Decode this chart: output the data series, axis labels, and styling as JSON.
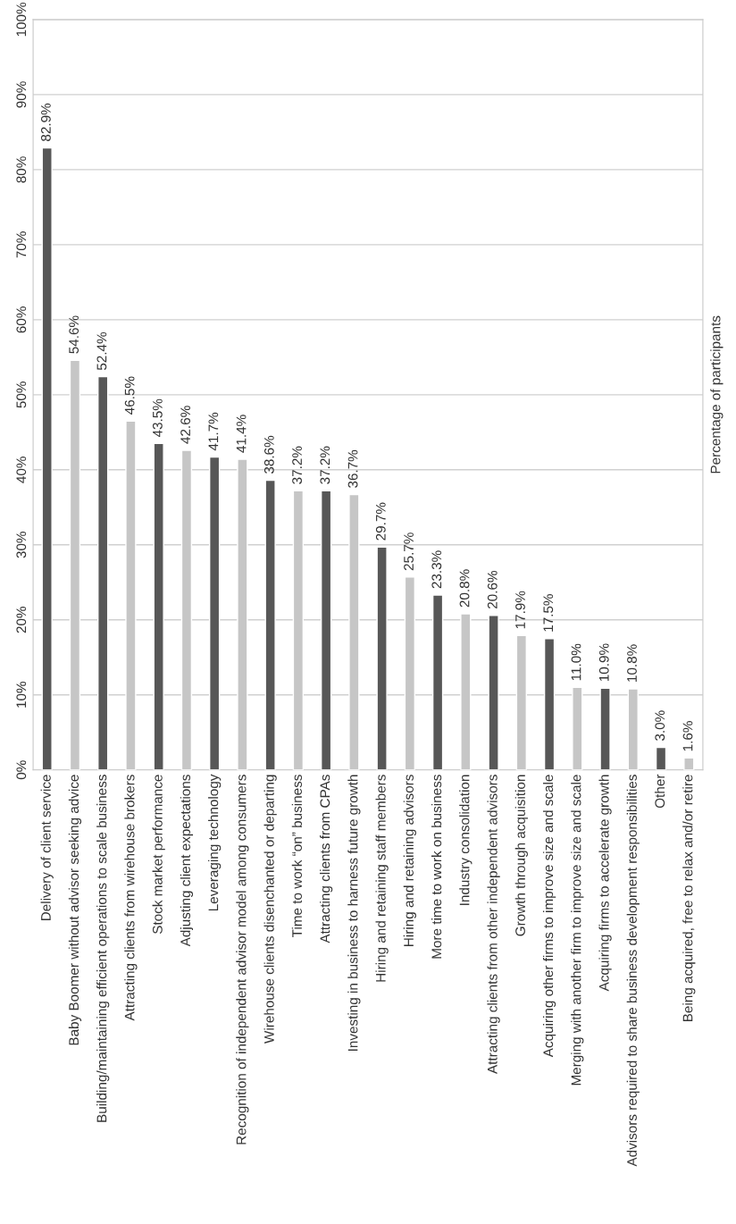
{
  "chart_data": {
    "type": "bar",
    "categories": [
      "Delivery of client service",
      "Baby Boomer without advisor seeking advice",
      "Building/maintaining efficient operations to scale business",
      "Attracting clients from wirehouse brokers",
      "Stock market performance",
      "Adjusting client expectations",
      "Leveraging technology",
      "Recognition of independent advisor model among consumers",
      "Wirehouse clients disenchanted or departing",
      "Time to work “on” business",
      "Attracting clients from CPAs",
      "Investing in business to harness future growth",
      "Hiring and retaining staff members",
      "Hiring and retaining advisors",
      "More time to work on business",
      "Industry consolidation",
      "Attracting clients from other independent advisors",
      "Growth through acquisition",
      "Acquiring other firms to improve size and scale",
      "Merging with another firm to improve size and scale",
      "Acquiring firms to accelerate growth",
      "Advisors required to share business development responsibilities",
      "Other",
      "Being acquired, free to relax and/or retire"
    ],
    "values": [
      82.9,
      54.6,
      52.4,
      46.5,
      43.5,
      42.6,
      41.7,
      41.4,
      38.6,
      37.2,
      37.2,
      36.7,
      29.7,
      25.7,
      23.3,
      20.8,
      20.6,
      17.9,
      17.5,
      11.0,
      10.9,
      10.8,
      3.0,
      1.6
    ],
    "value_labels": [
      "82.9%",
      "54.6%",
      "52.4%",
      "46.5%",
      "43.5%",
      "42.6%",
      "41.7%",
      "41.4%",
      "38.6%",
      "37.2%",
      "37.2%",
      "36.7%",
      "29.7%",
      "25.7%",
      "23.3%",
      "20.8%",
      "20.6%",
      "17.9%",
      "17.5%",
      "11.0%",
      "10.9%",
      "10.8%",
      "3.0%",
      "1.6%"
    ],
    "colors": [
      "#575757",
      "#c6c6c6",
      "#575757",
      "#c6c6c6",
      "#575757",
      "#c6c6c6",
      "#575757",
      "#c6c6c6",
      "#575757",
      "#c6c6c6",
      "#575757",
      "#c6c6c6",
      "#575757",
      "#c6c6c6",
      "#575757",
      "#c6c6c6",
      "#575757",
      "#c6c6c6",
      "#575757",
      "#c6c6c6",
      "#575757",
      "#c6c6c6",
      "#575757",
      "#c6c6c6"
    ],
    "ylabel": "Percentage of participants",
    "ylim": [
      0,
      100
    ],
    "yticks": [
      {
        "value": 0,
        "label": "0%"
      },
      {
        "value": 10,
        "label": "10%"
      },
      {
        "value": 20,
        "label": "20%"
      },
      {
        "value": 30,
        "label": "30%"
      },
      {
        "value": 40,
        "label": "40%"
      },
      {
        "value": 50,
        "label": "50%"
      },
      {
        "value": 60,
        "label": "60%"
      },
      {
        "value": 70,
        "label": "70%"
      },
      {
        "value": 80,
        "label": "80%"
      },
      {
        "value": 90,
        "label": "90%"
      },
      {
        "value": 100,
        "label": "100%"
      }
    ],
    "grid": "y",
    "legend": false
  }
}
